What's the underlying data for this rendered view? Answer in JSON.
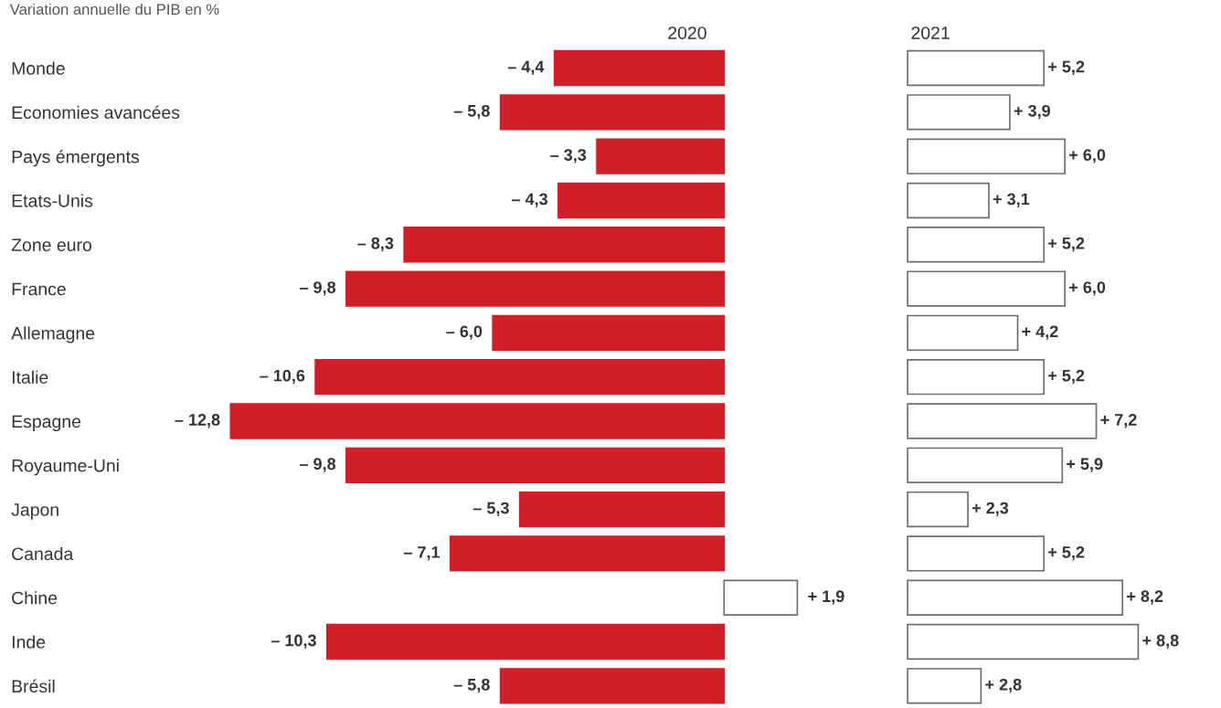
{
  "chart_data": [
    {
      "type": "bar",
      "orientation": "horizontal",
      "title": "Variation annuelle du PIB en %",
      "grid": false,
      "legend": false,
      "categories": [
        "Monde",
        "Economies avancées",
        "Pays émergents",
        "Etats-Unis",
        "Zone euro",
        "France",
        "Allemagne",
        "Italie",
        "Espagne",
        "Royaume-Uni",
        "Japon",
        "Canada",
        "Chine",
        "Inde",
        "Brésil"
      ],
      "series": [
        {
          "name": "2020",
          "colors": [
            "#d11f2a",
            "#d11f2a",
            "#d11f2a",
            "#d11f2a",
            "#d11f2a",
            "#d11f2a",
            "#d11f2a",
            "#d11f2a",
            "#d11f2a",
            "#d11f2a",
            "#d11f2a",
            "#d11f2a",
            "#ffffff",
            "#d11f2a",
            "#d11f2a"
          ],
          "values": [
            -4.4,
            -5.8,
            -3.3,
            -4.3,
            -8.3,
            -9.8,
            -6.0,
            -10.6,
            -12.8,
            -9.8,
            -5.3,
            -7.1,
            1.9,
            -10.3,
            -5.8
          ],
          "value_labels": [
            "– 4,4",
            "– 5,8",
            "– 3,3",
            "– 4,3",
            "– 8,3",
            "– 9,8",
            "– 6,0",
            "– 10,6",
            "– 12,8",
            "– 9,8",
            "– 5,3",
            "– 7,1",
            "+ 1,9",
            "– 10,3",
            "– 5,8"
          ]
        }
      ]
    },
    {
      "type": "bar",
      "orientation": "horizontal",
      "grid": false,
      "legend": false,
      "categories": [
        null,
        null,
        null,
        null,
        null,
        null,
        null,
        null,
        null,
        null,
        null,
        null,
        null,
        null,
        null
      ],
      "series": [
        {
          "name": "2021",
          "color": "#ffffff",
          "values": [
            5.2,
            3.9,
            6.0,
            3.1,
            5.2,
            6.0,
            4.2,
            5.2,
            7.2,
            5.9,
            2.3,
            5.2,
            8.2,
            8.8,
            2.8
          ],
          "value_labels": [
            "+ 5,2",
            "+ 3,9",
            "+ 6,0",
            "+ 3,1",
            "+ 5,2",
            "+ 6,0",
            "+ 4,2",
            "+ 5,2",
            "+ 7,2",
            "+ 5,9",
            "+ 2,3",
            "+ 5,2",
            "+ 8,2",
            "+ 8,8",
            "+ 2,8"
          ]
        }
      ]
    }
  ]
}
